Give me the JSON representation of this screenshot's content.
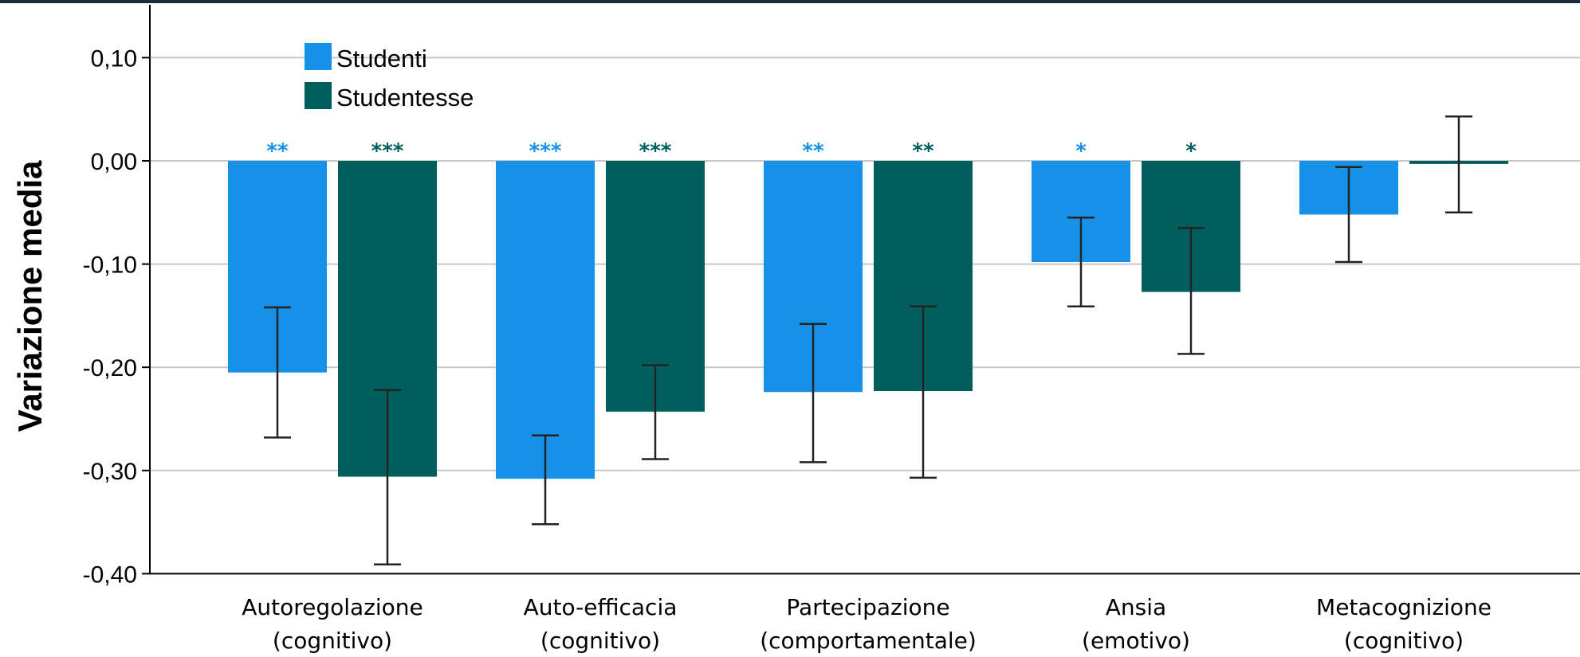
{
  "chart_data": {
    "type": "bar",
    "ylabel": "Variazione media",
    "ylim": [
      -0.4,
      0.15
    ],
    "yticks": [
      "0,10",
      "0,00",
      "-0,10",
      "-0,20",
      "-0,30",
      "-0,40"
    ],
    "ytick_values": [
      0.1,
      0.0,
      -0.1,
      -0.2,
      -0.3,
      -0.4
    ],
    "grid": true,
    "legend_position": "top-left",
    "categories": [
      [
        "Autoregolazione",
        "(cognitivo)"
      ],
      [
        "Auto-efficacia",
        "(cognitivo)"
      ],
      [
        "Partecipazione",
        "(comportamentale)"
      ],
      [
        "Ansia",
        "(emotivo)"
      ],
      [
        "Metacognizione",
        "(cognitivo)"
      ]
    ],
    "series": [
      {
        "name": "Studenti",
        "color": "#1591e8",
        "values": [
          -0.205,
          -0.308,
          -0.224,
          -0.098,
          -0.052
        ],
        "error_low": [
          -0.268,
          -0.352,
          -0.292,
          -0.141,
          -0.098
        ],
        "error_high": [
          -0.142,
          -0.266,
          -0.158,
          -0.055,
          -0.006
        ],
        "significance": [
          "**",
          "***",
          "**",
          "*",
          ""
        ]
      },
      {
        "name": "Studentesse",
        "color": "#005e5d",
        "values": [
          -0.306,
          -0.243,
          -0.223,
          -0.127,
          -0.003
        ],
        "error_low": [
          -0.391,
          -0.289,
          -0.307,
          -0.187,
          -0.05
        ],
        "error_high": [
          -0.222,
          -0.198,
          -0.141,
          -0.065,
          0.043
        ],
        "significance": [
          "***",
          "***",
          "**",
          "*",
          ""
        ]
      }
    ]
  }
}
